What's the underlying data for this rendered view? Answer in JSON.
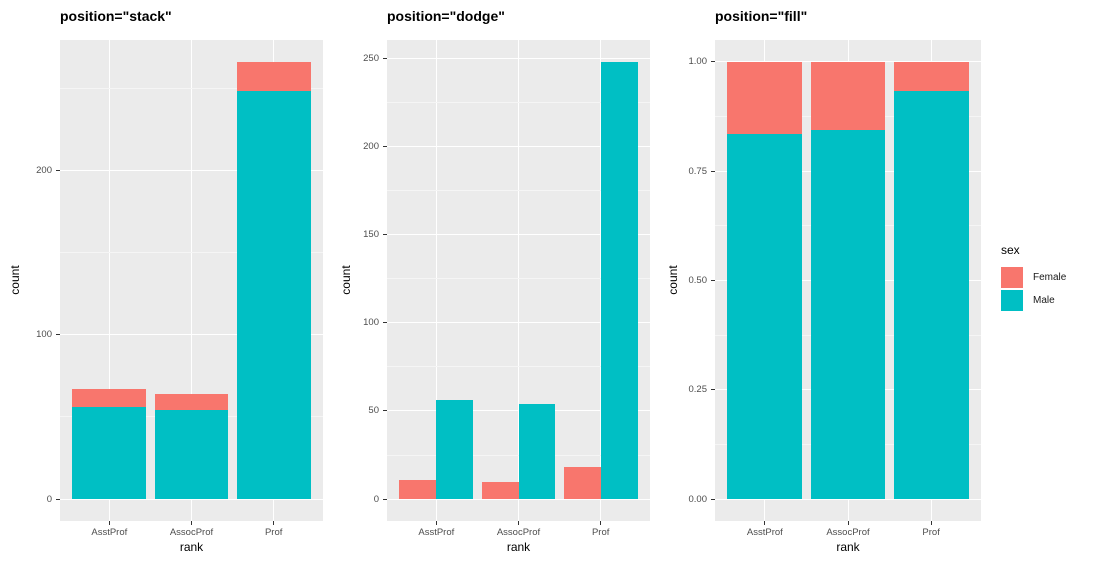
{
  "figure": {
    "background": "#FFFFFF",
    "description": "Three ggplot2 bar charts comparing position adjustments"
  },
  "theme": {
    "panel_bg": "#EBEBEB",
    "grid_major": "#FFFFFF",
    "grid_minor": "#F5F5F5",
    "tick_mark": "#333333",
    "axis_text": "#4D4D4D",
    "text": "#000000",
    "female_color": "#F8766D",
    "male_color": "#00BFC4"
  },
  "legend": {
    "title": "sex",
    "items": [
      {
        "label": "Female",
        "color": "#F8766D"
      },
      {
        "label": "Male",
        "color": "#00BFC4"
      }
    ]
  },
  "chart_data": [
    {
      "type": "bar",
      "position": "stack",
      "title": "position=\"stack\"",
      "xlabel": "rank",
      "ylabel": "count",
      "categories": [
        "AsstProf",
        "AssocProf",
        "Prof"
      ],
      "series": [
        {
          "name": "Female",
          "color": "#F8766D",
          "values": [
            11,
            10,
            18
          ]
        },
        {
          "name": "Male",
          "color": "#00BFC4",
          "values": [
            56,
            54,
            248
          ]
        }
      ],
      "stack_totals": [
        67,
        64,
        266
      ],
      "ylim": [
        0,
        266
      ],
      "y_ticks": [
        {
          "v": 0,
          "label": "0"
        },
        {
          "v": 100,
          "label": "100"
        },
        {
          "v": 200,
          "label": "200"
        }
      ],
      "grid": "major+minor",
      "legend_position": "none"
    },
    {
      "type": "bar",
      "position": "dodge",
      "title": "position=\"dodge\"",
      "xlabel": "rank",
      "ylabel": "count",
      "categories": [
        "AsstProf",
        "AssocProf",
        "Prof"
      ],
      "series": [
        {
          "name": "Female",
          "color": "#F8766D",
          "values": [
            11,
            10,
            18
          ]
        },
        {
          "name": "Male",
          "color": "#00BFC4",
          "values": [
            56,
            54,
            248
          ]
        }
      ],
      "ylim": [
        0,
        248
      ],
      "y_ticks": [
        {
          "v": 0,
          "label": "0"
        },
        {
          "v": 50,
          "label": "50"
        },
        {
          "v": 100,
          "label": "100"
        },
        {
          "v": 150,
          "label": "150"
        },
        {
          "v": 200,
          "label": "200"
        },
        {
          "v": 250,
          "label": "250"
        }
      ],
      "grid": "major+minor",
      "legend_position": "none"
    },
    {
      "type": "bar",
      "position": "fill",
      "title": "position=\"fill\"",
      "xlabel": "rank",
      "ylabel": "count",
      "categories": [
        "AsstProf",
        "AssocProf",
        "Prof"
      ],
      "series": [
        {
          "name": "Female",
          "color": "#F8766D",
          "values": [
            11,
            10,
            18
          ]
        },
        {
          "name": "Male",
          "color": "#00BFC4",
          "values": [
            56,
            54,
            248
          ]
        }
      ],
      "proportions_male": [
        0.836,
        0.844,
        0.932
      ],
      "ylim": [
        0,
        1
      ],
      "y_ticks": [
        {
          "v": 0,
          "label": "0.00"
        },
        {
          "v": 0.25,
          "label": "0.25"
        },
        {
          "v": 0.5,
          "label": "0.50"
        },
        {
          "v": 0.75,
          "label": "0.75"
        },
        {
          "v": 1,
          "label": "1.00"
        }
      ],
      "grid": "major+minor",
      "legend_position": "right"
    }
  ]
}
